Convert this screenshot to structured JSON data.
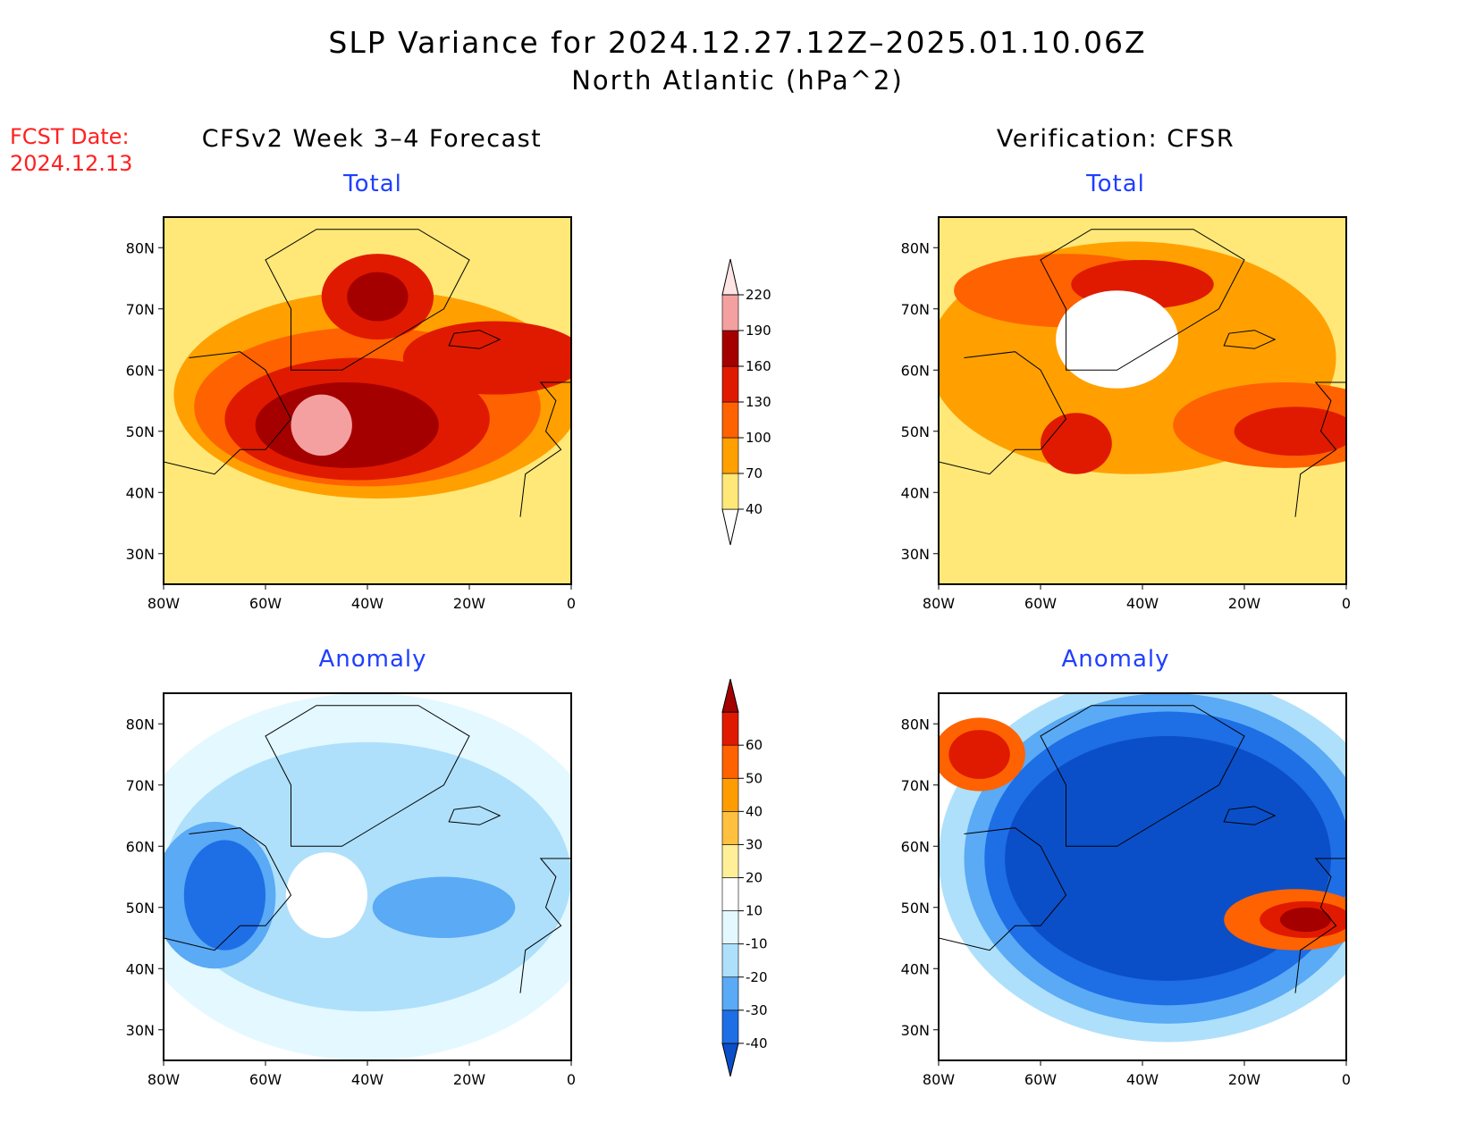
{
  "title": "SLP Variance for 2024.12.27.12Z–2025.01.10.06Z",
  "subtitle": "North Atlantic (hPa^2)",
  "fcst_label": "FCST Date:",
  "fcst_value": "2024.12.13",
  "left_column_title": "CFSv2 Week 3–4 Forecast",
  "right_column_title": "Verification: CFSR",
  "chart_data": [
    {
      "type": "heatmap",
      "panel": "forecast-total",
      "title": "Total",
      "x_ticks": [
        "80W",
        "60W",
        "40W",
        "20W",
        "0"
      ],
      "y_ticks": [
        "30N",
        "40N",
        "50N",
        "60N",
        "70N",
        "80N"
      ],
      "xlim": [
        -80,
        0
      ],
      "ylim": [
        25,
        85
      ],
      "colorbar": "total"
    },
    {
      "type": "heatmap",
      "panel": "verification-total",
      "title": "Total",
      "x_ticks": [
        "80W",
        "60W",
        "40W",
        "20W",
        "0"
      ],
      "y_ticks": [
        "30N",
        "40N",
        "50N",
        "60N",
        "70N",
        "80N"
      ],
      "xlim": [
        -80,
        0
      ],
      "ylim": [
        25,
        85
      ],
      "colorbar": "total"
    },
    {
      "type": "heatmap",
      "panel": "forecast-anomaly",
      "title": "Anomaly",
      "x_ticks": [
        "80W",
        "60W",
        "40W",
        "20W",
        "0"
      ],
      "y_ticks": [
        "30N",
        "40N",
        "50N",
        "60N",
        "70N",
        "80N"
      ],
      "xlim": [
        -80,
        0
      ],
      "ylim": [
        25,
        85
      ],
      "colorbar": "anomaly"
    },
    {
      "type": "heatmap",
      "panel": "verification-anomaly",
      "title": "Anomaly",
      "x_ticks": [
        "80W",
        "60W",
        "40W",
        "20W",
        "0"
      ],
      "y_ticks": [
        "30N",
        "40N",
        "50N",
        "60N",
        "70N",
        "80N"
      ],
      "xlim": [
        -80,
        0
      ],
      "ylim": [
        25,
        85
      ],
      "colorbar": "anomaly"
    }
  ],
  "colorbars": {
    "total": {
      "labels": [
        "40",
        "70",
        "100",
        "130",
        "160",
        "190",
        "220"
      ],
      "colors": [
        "#ffffff",
        "#ffe878",
        "#ffa000",
        "#ff6200",
        "#e01a00",
        "#a50000",
        "#f4a0a0",
        "#ffe4e4"
      ]
    },
    "anomaly": {
      "labels": [
        "-40",
        "-30",
        "-20",
        "-10",
        "10",
        "20",
        "30",
        "40",
        "50",
        "60"
      ],
      "colors": [
        "#0a4fc8",
        "#1e6ee6",
        "#5aaaf5",
        "#aee0fb",
        "#e4f8ff",
        "#ffffff",
        "#ffef99",
        "#ffc040",
        "#ff9d00",
        "#ff6200",
        "#e01a00",
        "#a50000"
      ]
    }
  }
}
